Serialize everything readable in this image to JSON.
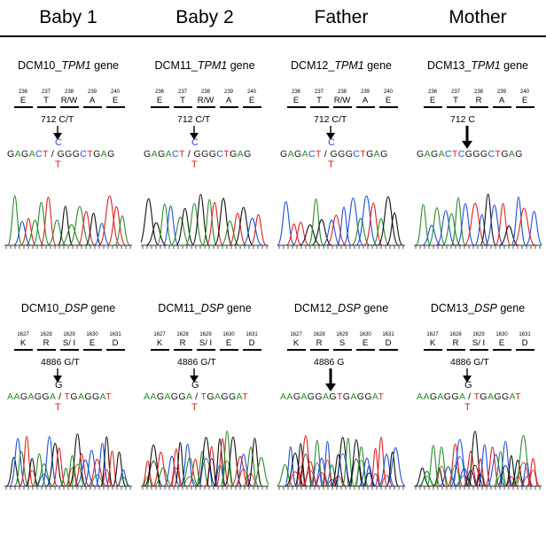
{
  "colors": {
    "A": "#2a8c2a",
    "C": "#1f4fd6",
    "G": "#111111",
    "T": "#e02020",
    "-": "#111111"
  },
  "columns": [
    {
      "title": "Baby 1",
      "tpm1": {
        "sample": "DCM10",
        "gene": "TPM1",
        "suffix": " gene",
        "codons": [
          {
            "num": "236",
            "aa": "E"
          },
          {
            "num": "237",
            "aa": "T"
          },
          {
            "num": "238",
            "aa": "R/W"
          },
          {
            "num": "239",
            "aa": "A"
          },
          {
            "num": "240",
            "aa": "E"
          }
        ],
        "variant": "712 C/T",
        "top_base": "C",
        "seq_left": "GAGACT",
        "sep": " / ",
        "seq_right": "GGGCTGAG",
        "bottom_base": "T"
      },
      "dsp": {
        "sample": "DCM10",
        "gene": "DSP",
        "suffix": " gene",
        "codons": [
          {
            "num": "1627",
            "aa": "K"
          },
          {
            "num": "1628",
            "aa": "R"
          },
          {
            "num": "1629",
            "aa": "S/ I"
          },
          {
            "num": "1630",
            "aa": "E"
          },
          {
            "num": "1631",
            "aa": "D"
          }
        ],
        "variant": "4886 G/T",
        "top_base": "G",
        "seq_left": "AAGAGGA",
        "sep": " / ",
        "seq_right": "TGAGGAT",
        "bottom_base": "T"
      }
    },
    {
      "title": "Baby 2",
      "tpm1": {
        "sample": "DCM11",
        "gene": "TPM1",
        "suffix": " gene",
        "codons": [
          {
            "num": "236",
            "aa": "E"
          },
          {
            "num": "237",
            "aa": "T"
          },
          {
            "num": "238",
            "aa": "R/W"
          },
          {
            "num": "239",
            "aa": "A"
          },
          {
            "num": "240",
            "aa": "E"
          }
        ],
        "variant": "712 C/T",
        "top_base": "C",
        "seq_left": "GAGACT",
        "sep": " / ",
        "seq_right": "GGGCTGAG",
        "bottom_base": "T"
      },
      "dsp": {
        "sample": "DCM11",
        "gene": "DSP",
        "suffix": " gene",
        "codons": [
          {
            "num": "1627",
            "aa": "K"
          },
          {
            "num": "1628",
            "aa": "R"
          },
          {
            "num": "1629",
            "aa": "S/ I"
          },
          {
            "num": "1630",
            "aa": "E"
          },
          {
            "num": "1631",
            "aa": "D"
          }
        ],
        "variant": "4886 G/T",
        "top_base": "G",
        "seq_left": "AAGAGGA",
        "sep": " / ",
        "seq_right": "TGAGGAT",
        "bottom_base": "T"
      }
    },
    {
      "title": "Father",
      "tpm1": {
        "sample": "DCM12",
        "gene": "TPM1",
        "suffix": " gene",
        "codons": [
          {
            "num": "236",
            "aa": "E"
          },
          {
            "num": "237",
            "aa": "T"
          },
          {
            "num": "238",
            "aa": "R/W"
          },
          {
            "num": "239",
            "aa": "A"
          },
          {
            "num": "240",
            "aa": "E"
          }
        ],
        "variant": "712 C/T",
        "top_base": "C",
        "seq_left": "GAGACT",
        "sep": " / ",
        "seq_right": "GGGCTGAG",
        "bottom_base": "T"
      },
      "dsp": {
        "sample": "DCM12",
        "gene": "DSP",
        "suffix": " gene",
        "codons": [
          {
            "num": "1627",
            "aa": "K"
          },
          {
            "num": "1628",
            "aa": "R"
          },
          {
            "num": "1629",
            "aa": "S"
          },
          {
            "num": "1630",
            "aa": "E"
          },
          {
            "num": "1631",
            "aa": "D"
          }
        ],
        "variant": "4886 G",
        "top_base": "",
        "seq_left": "AAGAGGAGTGAGGAT",
        "sep": "",
        "seq_right": "",
        "bottom_base": ""
      }
    },
    {
      "title": "Mother",
      "tpm1": {
        "sample": "DCM13",
        "gene": "TPM1",
        "suffix": " gene",
        "codons": [
          {
            "num": "236",
            "aa": "E"
          },
          {
            "num": "237",
            "aa": "T"
          },
          {
            "num": "238",
            "aa": "R"
          },
          {
            "num": "239",
            "aa": "A"
          },
          {
            "num": "240",
            "aa": "E"
          }
        ],
        "variant": "712 C",
        "top_base": "",
        "seq_left": "GAGACTCGGGCTGAG",
        "sep": "",
        "seq_right": "",
        "bottom_base": ""
      },
      "dsp": {
        "sample": "DCM13",
        "gene": "DSP",
        "suffix": " gene",
        "codons": [
          {
            "num": "1627",
            "aa": "K"
          },
          {
            "num": "1628",
            "aa": "R"
          },
          {
            "num": "1629",
            "aa": "S/ I"
          },
          {
            "num": "1630",
            "aa": "E"
          },
          {
            "num": "1631",
            "aa": "D"
          }
        ],
        "variant": "4886 G/T",
        "top_base": "G",
        "seq_left": "AAGAGGA",
        "sep": " / ",
        "seq_right": "TGAGGAT",
        "bottom_base": "T"
      }
    }
  ]
}
